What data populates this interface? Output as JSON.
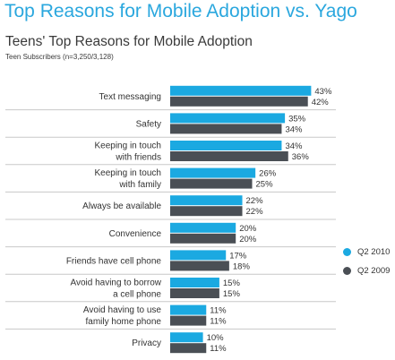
{
  "header": {
    "title": "Top Reasons for Mobile Adoption vs. Yago",
    "subtitle": "Teens' Top Reasons for Mobile Adoption",
    "note": "Teen Subscribers (n=3,250/3,128)"
  },
  "colors": {
    "q2_2010": "#1ba9e1",
    "q2_2009": "#4a4f55",
    "title": "#2aa7de",
    "separator": "#c8c8c8"
  },
  "chart_data": {
    "type": "bar",
    "orientation": "horizontal",
    "categories": [
      [
        "Text messaging"
      ],
      [
        "Safety"
      ],
      [
        "Keeping in touch",
        "with friends"
      ],
      [
        "Keeping in touch",
        "with family"
      ],
      [
        "Always be available"
      ],
      [
        "Convenience"
      ],
      [
        "Friends have cell phone"
      ],
      [
        "Avoid having to borrow",
        "a cell phone"
      ],
      [
        "Avoid having to use",
        "family home phone"
      ],
      [
        "Privacy"
      ]
    ],
    "series": [
      {
        "name": "Q2 2010",
        "values": [
          43,
          35,
          34,
          26,
          22,
          20,
          17,
          15,
          11,
          10
        ]
      },
      {
        "name": "Q2 2009",
        "values": [
          42,
          34,
          36,
          25,
          22,
          20,
          18,
          15,
          11,
          11
        ]
      }
    ],
    "value_suffix": "%",
    "grid": false,
    "legend_position": "right"
  }
}
